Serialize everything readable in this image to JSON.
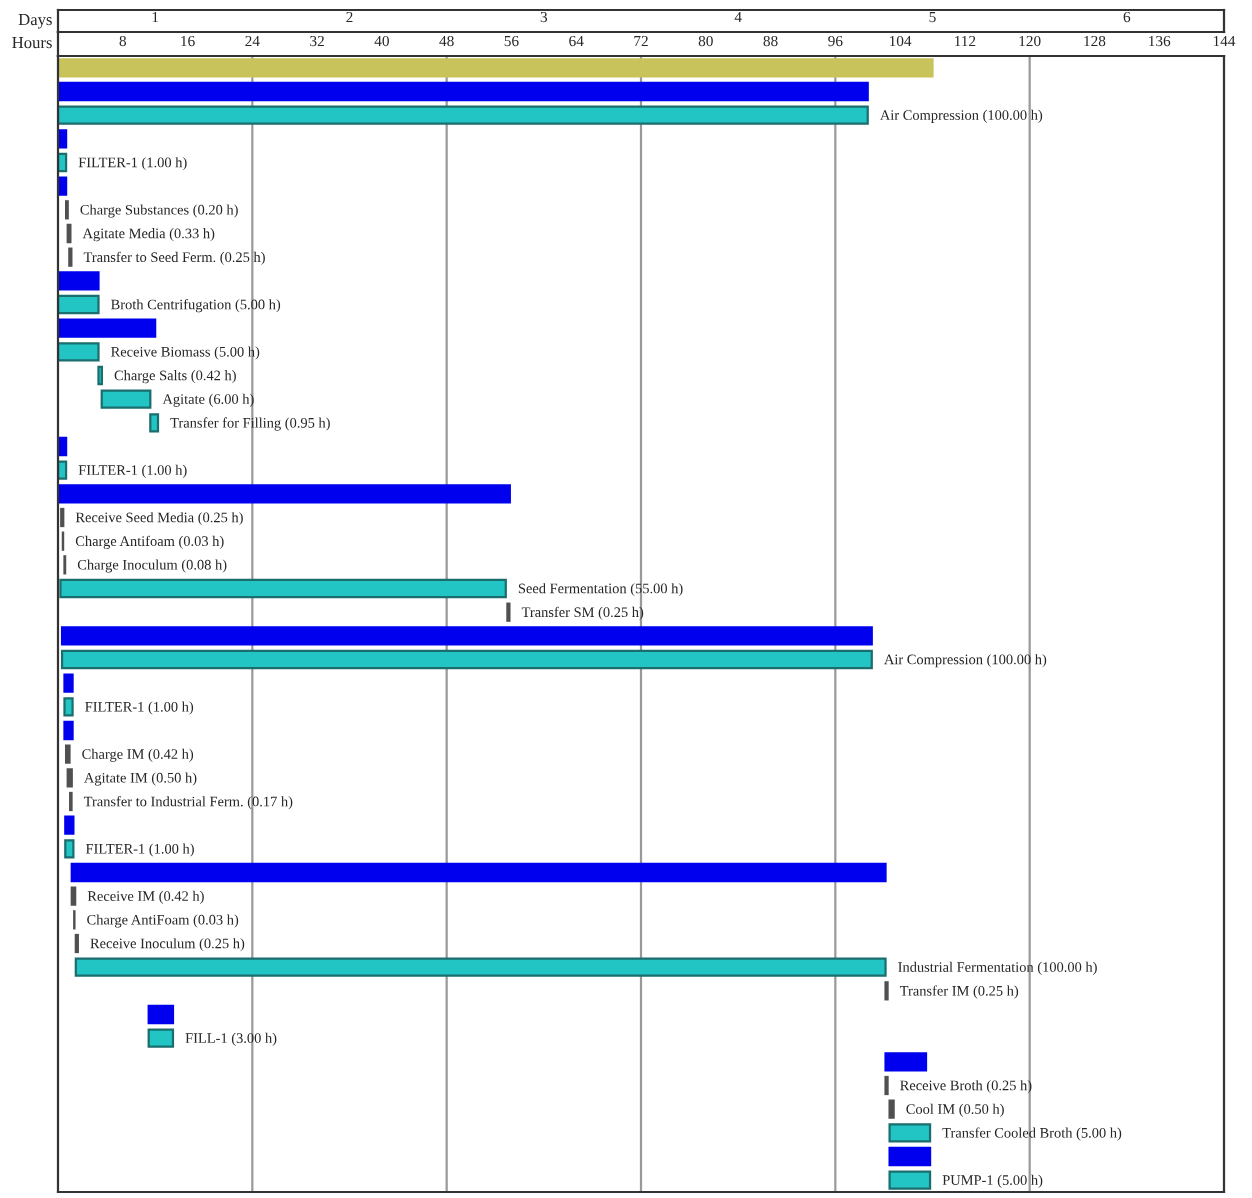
{
  "chart_data": {
    "type": "bar",
    "orientation": "horizontal",
    "xlabel": "Hours",
    "x2label": "Days",
    "tick_labels": "x",
    "categories": [
      null,
      null,
      null,
      null,
      null,
      null,
      null,
      null,
      null,
      null,
      null,
      null,
      null,
      null,
      null,
      null,
      null,
      null,
      null,
      null,
      null,
      null,
      null,
      null,
      null,
      null,
      null,
      null,
      null,
      null,
      null,
      null,
      null,
      null,
      null,
      null,
      null,
      null,
      null,
      null,
      null,
      null,
      null,
      null,
      null,
      null,
      null,
      null
    ],
    "base": [
      0,
      0,
      0,
      0,
      0,
      0,
      1.0,
      1.2,
      1.4,
      0,
      0,
      0,
      0,
      5.0,
      5.4,
      11.4,
      0,
      0,
      0.2,
      0.4,
      0.6,
      0.8,
      0.3,
      55.5,
      0.5,
      0.5,
      0.8,
      0.8,
      0.8,
      1.0,
      1.2,
      1.5,
      0.9,
      0.9,
      1.7,
      1.7,
      2.0,
      2.2,
      2.2,
      102.2,
      11.2,
      11.2,
      102.2,
      102.2,
      102.7,
      102.7,
      102.7,
      102.7
    ],
    "values": [
      108,
      100,
      100,
      1,
      1,
      1,
      0.2,
      0.33,
      0.25,
      5,
      5,
      12,
      5,
      0.42,
      6,
      0.95,
      1,
      1,
      55.6,
      0.25,
      0.03,
      0.08,
      55,
      0.25,
      100,
      100,
      1,
      1,
      1,
      0.42,
      0.5,
      0.17,
      1,
      1,
      100.5,
      0.42,
      0.03,
      0.25,
      100,
      0.25,
      3,
      3,
      5,
      0.25,
      0.5,
      5,
      5,
      5
    ],
    "colors": [
      "#c8c35a",
      "#0000ee",
      "#22c4c4",
      "#0000ee",
      "#22c4c4",
      "#0000ee",
      "#505050",
      "#505050",
      "#505050",
      "#0000ee",
      "#22c4c4",
      "#0000ee",
      "#22c4c4",
      "#22c4c4",
      "#22c4c4",
      "#22c4c4",
      "#0000ee",
      "#22c4c4",
      "#0000ee",
      "#505050",
      "#505050",
      "#505050",
      "#22c4c4",
      "#505050",
      "#0000ee",
      "#22c4c4",
      "#0000ee",
      "#22c4c4",
      "#0000ee",
      "#505050",
      "#505050",
      "#505050",
      "#0000ee",
      "#22c4c4",
      "#0000ee",
      "#505050",
      "#505050",
      "#505050",
      "#22c4c4",
      "#505050",
      "#0000ee",
      "#22c4c4",
      "#0000ee",
      "#505050",
      "#505050",
      "#22c4c4",
      "#0000ee",
      "#22c4c4"
    ],
    "value_labels": [
      null,
      null,
      "Air Compression (100.00 h)",
      null,
      "FILTER-1 (1.00 h)",
      null,
      "Charge Substances (0.20 h)",
      "Agitate Media (0.33 h)",
      "Transfer to Seed Ferm. (0.25 h)",
      null,
      "Broth Centrifugation (5.00 h)",
      null,
      "Receive Biomass (5.00 h)",
      "Charge Salts (0.42 h)",
      "Agitate (6.00 h)",
      "Transfer for Filling (0.95 h)",
      null,
      "FILTER-1 (1.00 h)",
      null,
      "Receive Seed Media (0.25 h)",
      "Charge Antifoam (0.03 h)",
      "Charge Inoculum (0.08 h)",
      "Seed Fermentation (55.00 h)",
      "Transfer SM (0.25 h)",
      null,
      "Air Compression (100.00 h)",
      null,
      "FILTER-1 (1.00 h)",
      null,
      "Charge IM (0.42 h)",
      "Agitate IM (0.50 h)",
      "Transfer to Industrial Ferm. (0.17 h)",
      null,
      "FILTER-1 (1.00 h)",
      null,
      "Receive IM (0.42 h)",
      "Charge AntiFoam (0.03 h)",
      "Receive Inoculum (0.25 h)",
      "Industrial Fermentation (100.00 h)",
      "Transfer IM (0.25 h)",
      null,
      "FILL-1 (3.00 h)",
      null,
      "Receive Broth (0.25 h)",
      "Cool IM (0.50 h)",
      "Transfer Cooled Broth (5.00 h)",
      null,
      "PUMP-1 (5.00 h)"
    ],
    "xlim": [
      0,
      144
    ],
    "xticks": [
      8,
      16,
      24,
      32,
      40,
      48,
      56,
      64,
      72,
      80,
      88,
      96,
      104,
      112,
      120,
      128,
      136,
      144
    ],
    "x2lim": [
      0.5,
      6.5
    ],
    "x2ticks": [
      1,
      2,
      3,
      4,
      5,
      6
    ],
    "ref_lines": [
      {
        "axis": "x",
        "value": 24,
        "color": "#999999"
      },
      {
        "axis": "x",
        "value": 48,
        "color": "#999999"
      },
      {
        "axis": "x",
        "value": 72,
        "color": "#999999"
      },
      {
        "axis": "x",
        "value": 96,
        "color": "#999999"
      },
      {
        "axis": "x",
        "value": 120,
        "color": "#999999"
      }
    ]
  }
}
